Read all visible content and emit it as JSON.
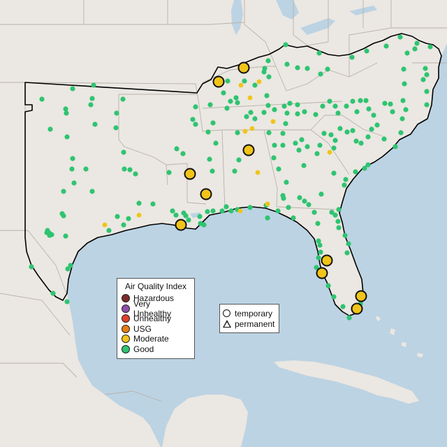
{
  "colors": {
    "land": "#ebe7e2",
    "water": "#bcd3e3",
    "state_lines": "#b9b2ab",
    "region_outline": "#000000"
  },
  "legend_aqi": {
    "title": "Air Quality Index",
    "items": [
      {
        "label": "Hazardous",
        "color": "#7e2a2a"
      },
      {
        "label": "Very Unhealthy",
        "color": "#8e4fa8"
      },
      {
        "label": "Unhealthy",
        "color": "#e0402a"
      },
      {
        "label": "USG",
        "color": "#e57c15"
      },
      {
        "label": "Moderate",
        "color": "#f0c419"
      },
      {
        "label": "Good",
        "color": "#2ec471"
      }
    ]
  },
  "legend_monitor": {
    "items": [
      {
        "label": "temporary",
        "symbol": "circle"
      },
      {
        "label": "permanent",
        "symbol": "triangle"
      }
    ]
  }
}
